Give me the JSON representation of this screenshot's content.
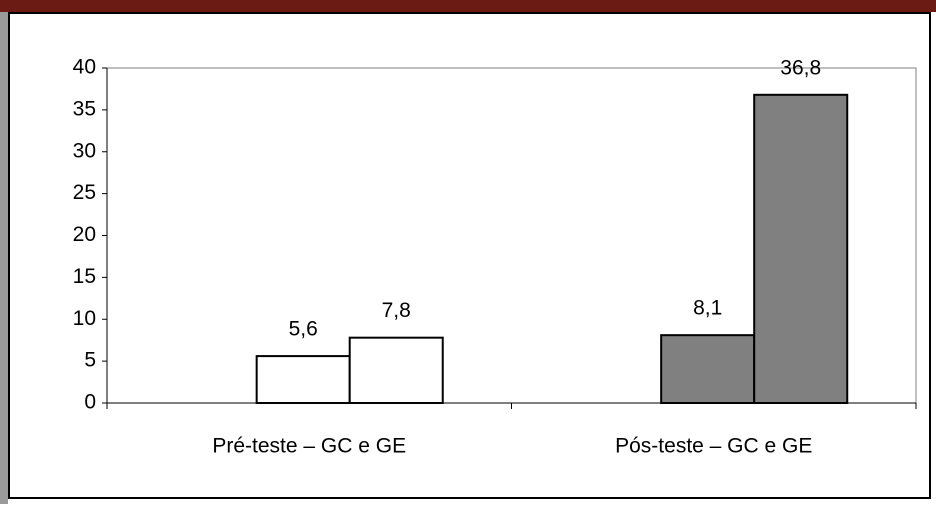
{
  "chart_data": {
    "type": "grouped-bar",
    "categories": [
      "Pré-teste – GC e GE",
      "Pós-teste – GC e GE"
    ],
    "values": [
      [
        5.6,
        7.8
      ],
      [
        8.1,
        36.8
      ]
    ],
    "value_labels": [
      [
        "5,6",
        "7,8"
      ],
      [
        "8,1",
        "36,8"
      ]
    ],
    "colors": [
      "#ffffff",
      "#808080"
    ],
    "ylim": [
      0,
      40
    ],
    "yticks": [
      0,
      5,
      10,
      15,
      20,
      25,
      30,
      35,
      40
    ]
  }
}
